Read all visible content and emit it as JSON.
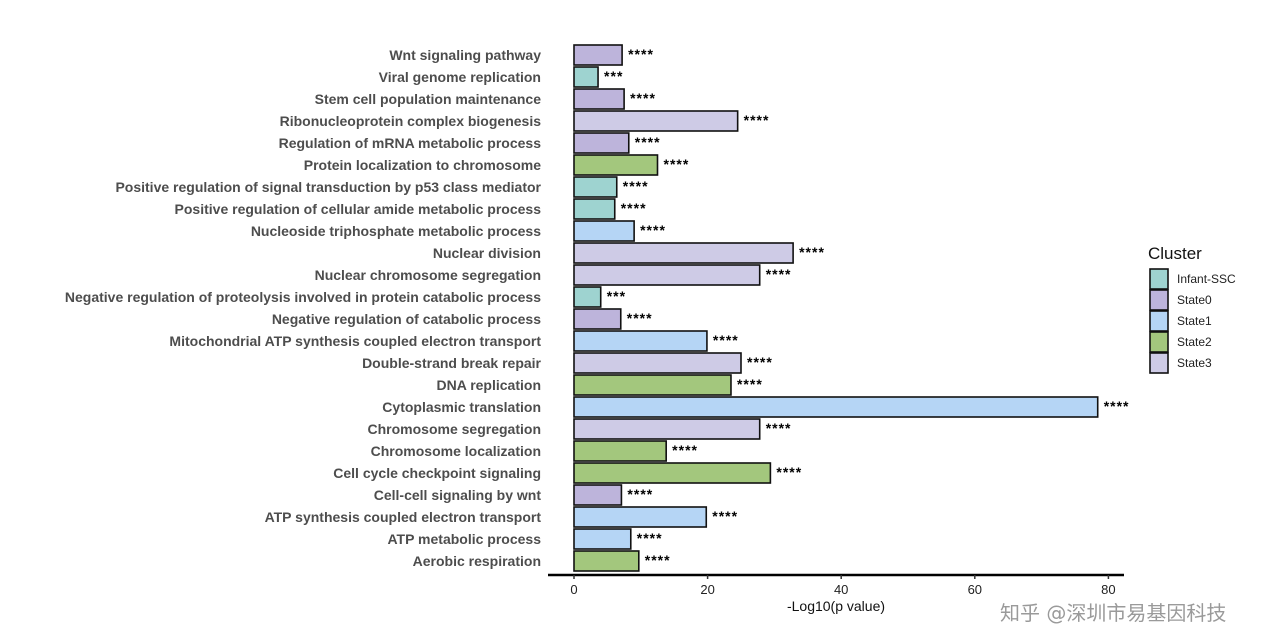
{
  "chart_data": {
    "type": "bar",
    "orientation": "horizontal",
    "title": "",
    "xlabel": "-Log10(p value)",
    "ylabel": "",
    "xlim": [
      0,
      82
    ],
    "xticks": [
      0,
      20,
      40,
      60,
      80
    ],
    "grid": false,
    "legend": {
      "title": "Cluster",
      "position": "right",
      "entries": [
        {
          "name": "Infant-SSC",
          "color": "#9ED3D0"
        },
        {
          "name": "State0",
          "color": "#BDB4DB"
        },
        {
          "name": "State1",
          "color": "#B5D5F5"
        },
        {
          "name": "State2",
          "color": "#A3C77D"
        },
        {
          "name": "State3",
          "color": "#CECBE6"
        }
      ]
    },
    "bars": [
      {
        "category": "Wnt signaling pathway",
        "value": 7.2,
        "cluster": "State0",
        "significance": "****"
      },
      {
        "category": "Viral genome replication",
        "value": 3.6,
        "cluster": "Infant-SSC",
        "significance": "***"
      },
      {
        "category": "Stem cell population maintenance",
        "value": 7.5,
        "cluster": "State0",
        "significance": "****"
      },
      {
        "category": "Ribonucleoprotein complex biogenesis",
        "value": 24.5,
        "cluster": "State3",
        "significance": "****"
      },
      {
        "category": "Regulation of mRNA metabolic process",
        "value": 8.2,
        "cluster": "State0",
        "significance": "****"
      },
      {
        "category": "Protein localization to chromosome",
        "value": 12.5,
        "cluster": "State2",
        "significance": "****"
      },
      {
        "category": "Positive regulation of signal transduction by p53 class mediator",
        "value": 6.4,
        "cluster": "Infant-SSC",
        "significance": "****"
      },
      {
        "category": "Positive regulation of cellular amide metabolic process",
        "value": 6.1,
        "cluster": "Infant-SSC",
        "significance": "****"
      },
      {
        "category": "Nucleoside triphosphate metabolic process",
        "value": 9.0,
        "cluster": "State1",
        "significance": "****"
      },
      {
        "category": "Nuclear division",
        "value": 32.8,
        "cluster": "State3",
        "significance": "****"
      },
      {
        "category": "Nuclear chromosome segregation",
        "value": 27.8,
        "cluster": "State3",
        "significance": "****"
      },
      {
        "category": "Negative regulation of proteolysis involved in protein catabolic process",
        "value": 4.0,
        "cluster": "Infant-SSC",
        "significance": "***"
      },
      {
        "category": "Negative regulation of catabolic process",
        "value": 7.0,
        "cluster": "State0",
        "significance": "****"
      },
      {
        "category": "Mitochondrial ATP synthesis coupled electron transport",
        "value": 19.9,
        "cluster": "State1",
        "significance": "****"
      },
      {
        "category": "Double-strand break repair",
        "value": 25.0,
        "cluster": "State3",
        "significance": "****"
      },
      {
        "category": "DNA replication",
        "value": 23.5,
        "cluster": "State2",
        "significance": "****"
      },
      {
        "category": "Cytoplasmic translation",
        "value": 78.4,
        "cluster": "State1",
        "significance": "****"
      },
      {
        "category": "Chromosome segregation",
        "value": 27.8,
        "cluster": "State3",
        "significance": "****"
      },
      {
        "category": "Chromosome localization",
        "value": 13.8,
        "cluster": "State2",
        "significance": "****"
      },
      {
        "category": "Cell cycle checkpoint signaling",
        "value": 29.4,
        "cluster": "State2",
        "significance": "****"
      },
      {
        "category": "Cell-cell signaling by wnt",
        "value": 7.1,
        "cluster": "State0",
        "significance": "****"
      },
      {
        "category": "ATP synthesis coupled electron transport",
        "value": 19.8,
        "cluster": "State1",
        "significance": "****"
      },
      {
        "category": "ATP metabolic process",
        "value": 8.5,
        "cluster": "State1",
        "significance": "****"
      },
      {
        "category": "Aerobic respiration",
        "value": 9.7,
        "cluster": "State2",
        "significance": "****"
      }
    ]
  },
  "watermark": "知乎 @深圳市易基因科技"
}
